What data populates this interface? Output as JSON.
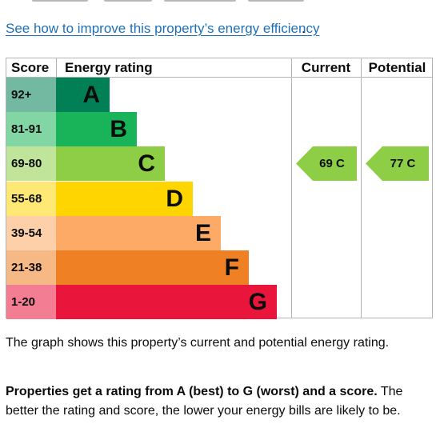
{
  "improve_link": {
    "text": "See how to improve this property’s energy efficiency",
    "suffix": "."
  },
  "chart_data": {
    "type": "table",
    "headers": {
      "score": "Score",
      "rating": "Energy rating",
      "current": "Current",
      "potential": "Potential"
    },
    "bands": [
      {
        "score": "92+",
        "letter": "A",
        "color": "#008054"
      },
      {
        "score": "81-91",
        "letter": "B",
        "color": "#19b459"
      },
      {
        "score": "69-80",
        "letter": "C",
        "color": "#8dce46"
      },
      {
        "score": "55-68",
        "letter": "D",
        "color": "#ffd500"
      },
      {
        "score": "39-54",
        "letter": "E",
        "color": "#fcaa65"
      },
      {
        "score": "21-38",
        "letter": "F",
        "color": "#ef8023"
      },
      {
        "score": "1-20",
        "letter": "G",
        "color": "#e9153b"
      }
    ],
    "current": {
      "score": 69,
      "letter": "C",
      "label": "69 C",
      "color": "#8dce46"
    },
    "potential": {
      "score": 77,
      "letter": "C",
      "label": "77 C",
      "color": "#8dce46"
    }
  },
  "description": "The graph shows this property’s current and potential energy rating.",
  "ratings_note": {
    "bold": "Properties get a rating from A (best) to G (worst) and a score.",
    "rest": " The better the rating and score, the lower your energy bills are likely to be."
  }
}
